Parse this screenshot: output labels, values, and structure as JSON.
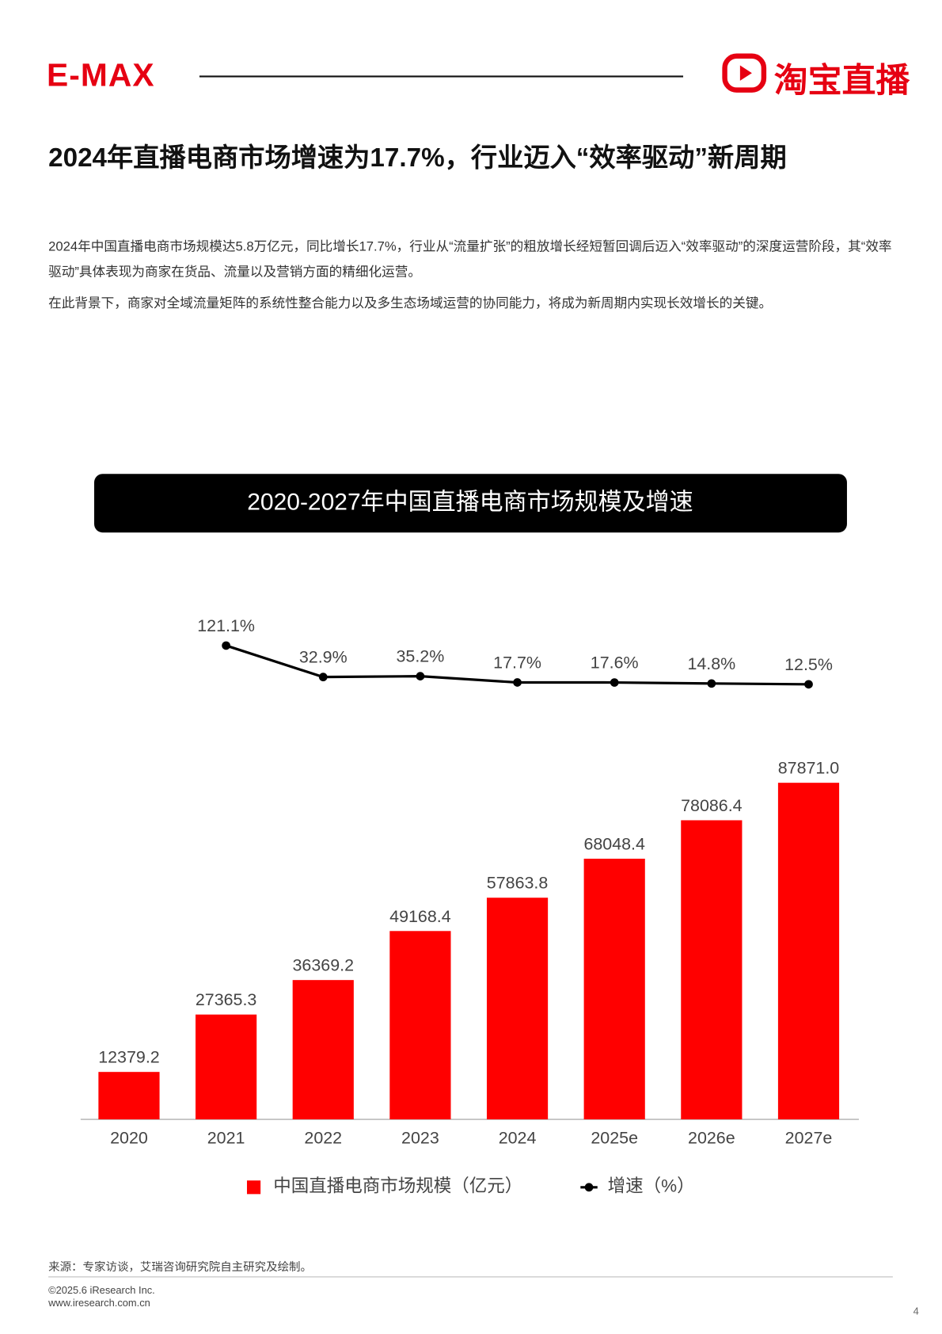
{
  "header": {
    "brand": "E-MAX",
    "logo_text": "淘宝直播"
  },
  "title": "2024年直播电商市场增速为17.7%，行业迈入“效率驱动”新周期",
  "paragraphs": [
    "2024年中国直播电商市场规模达5.8万亿元，同比增长17.7%，行业从“流量扩张”的粗放增长经短暂回调后迈入“效率驱动”的深度运营阶段，其“效率驱动”具体表现为商家在货品、流量以及营销方面的精细化运营。",
    "在此背景下，商家对全域流量矩阵的系统性整合能力以及多生态场域运营的协同能力，将成为新周期内实现长效增长的关键。"
  ],
  "chart_data": {
    "type": "bar",
    "title": "2020-2027年中国直播电商市场规模及增速",
    "categories": [
      "2020",
      "2021",
      "2022",
      "2023",
      "2024",
      "2025e",
      "2026e",
      "2027e"
    ],
    "series": [
      {
        "name": "中国直播电商市场规模（亿元）",
        "type": "bar",
        "color": "#ff0000",
        "values": [
          12379.2,
          27365.3,
          36369.2,
          49168.4,
          57863.8,
          68048.4,
          78086.4,
          87871.0
        ],
        "value_labels": [
          "12379.2",
          "27365.3",
          "36369.2",
          "49168.4",
          "57863.8",
          "68048.4",
          "78086.4",
          "87871.0"
        ]
      },
      {
        "name": "增速（%）",
        "type": "line",
        "axis": "y2",
        "color": "#000000",
        "values": [
          null,
          121.1,
          32.9,
          35.2,
          17.7,
          17.6,
          14.8,
          12.5
        ],
        "value_labels": [
          null,
          "121.1%",
          "32.9%",
          "35.2%",
          "17.7%",
          "17.6%",
          "14.8%",
          "12.5%"
        ]
      }
    ],
    "ylim": [
      0,
      100000
    ],
    "y2lim": [
      0,
      150
    ],
    "grid": false,
    "legend": "bottom"
  },
  "source": "来源：专家访谈，艾瑞咨询研究院自主研究及绘制。",
  "footer": {
    "copyright": "©2025.6 iResearch Inc.",
    "website": "www.iresearch.com.cn",
    "page": "4"
  }
}
